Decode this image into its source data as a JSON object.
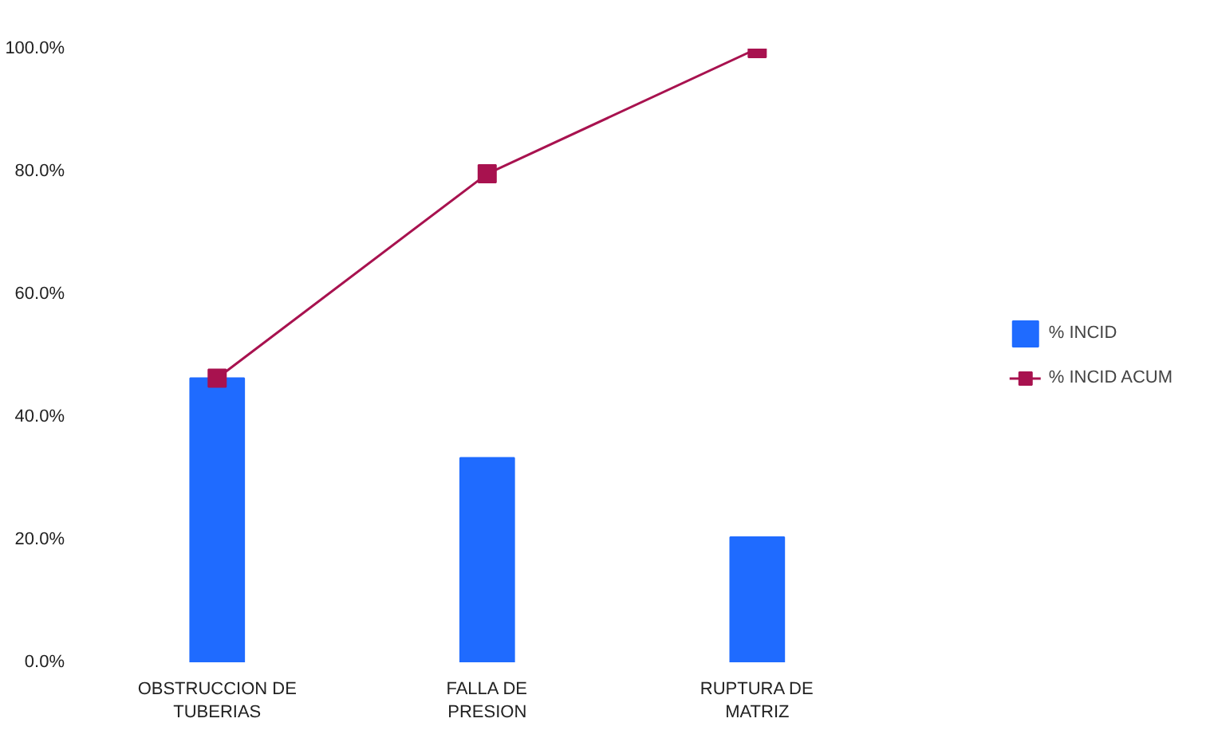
{
  "chart_data": {
    "type": "bar",
    "categories": [
      "OBSTRUCCION DE TUBERIAS",
      "FALLA DE PRESION",
      "RUPTURA DE MATRIZ"
    ],
    "series": [
      {
        "name": "% INCID",
        "color": "#1f6bff",
        "values": [
          46.3,
          33.3,
          20.4
        ]
      },
      {
        "name": "% INCID ACUM",
        "color": "#a8124f",
        "type": "line",
        "marker": "square",
        "values": [
          46.3,
          79.6,
          100
        ]
      }
    ],
    "ylim": [
      0,
      100
    ],
    "yticks": [
      {
        "value": 0,
        "label": "0.0%"
      },
      {
        "value": 20,
        "label": "20.0%"
      },
      {
        "value": 40,
        "label": "40.0%"
      },
      {
        "value": 60,
        "label": "60.0%"
      },
      {
        "value": 80,
        "label": "80.0%"
      },
      {
        "value": 100,
        "label": "100.0%"
      }
    ],
    "grid": false,
    "legend": "right"
  }
}
